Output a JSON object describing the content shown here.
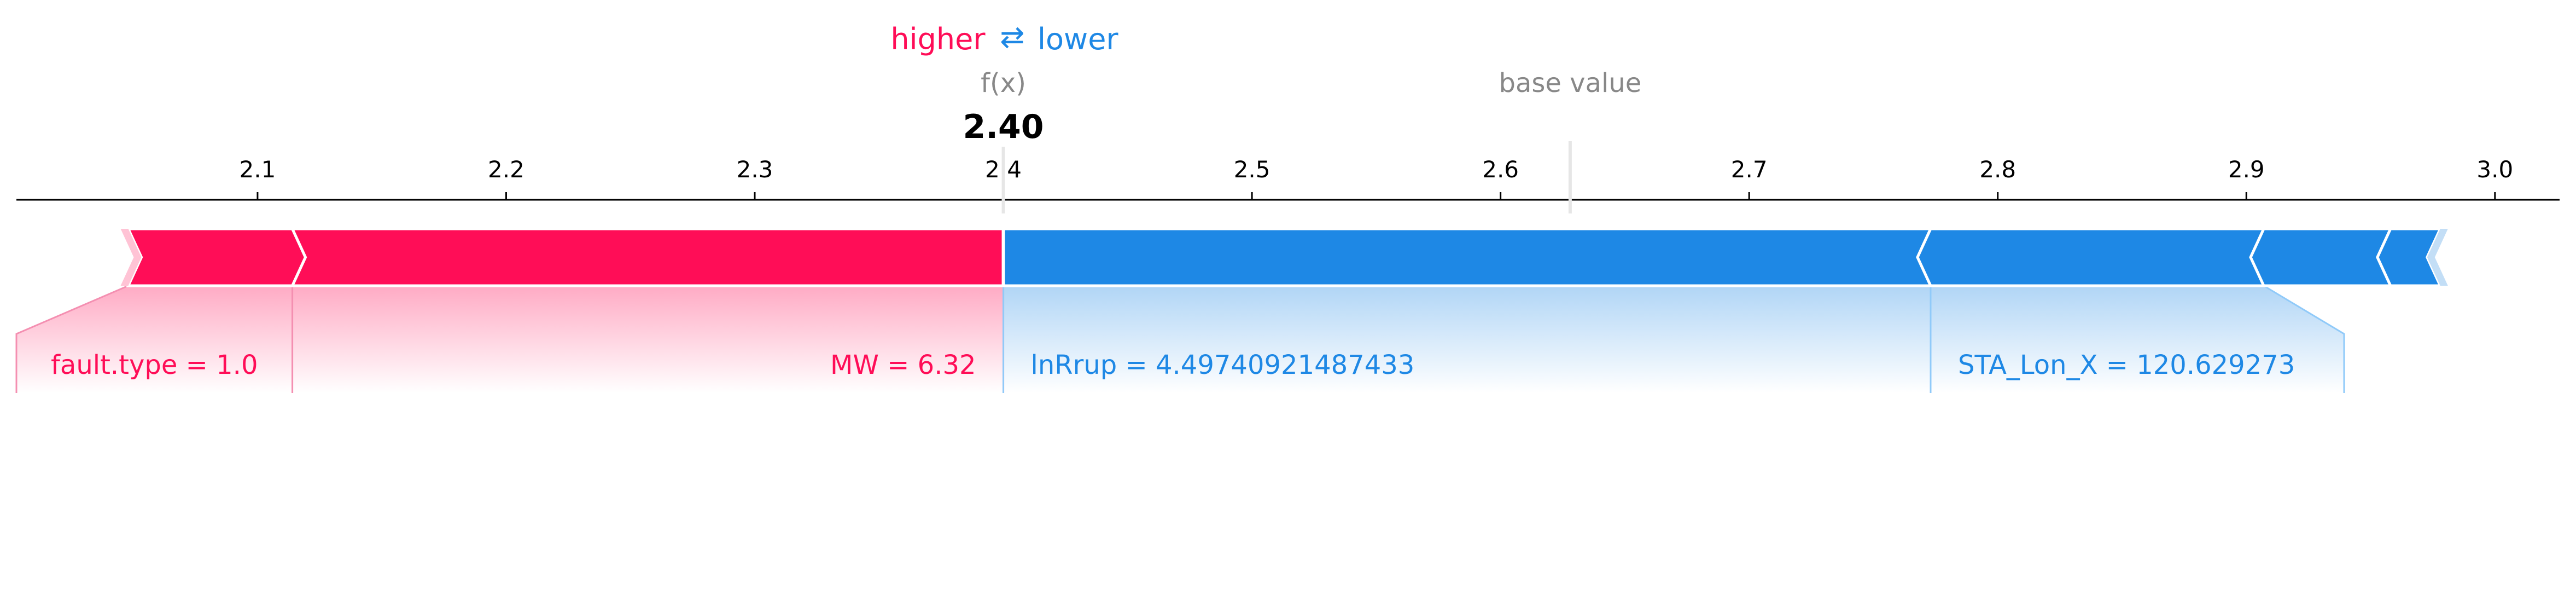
{
  "legend": {
    "higher": "higher",
    "arrows": "⇄",
    "lower": "lower"
  },
  "fx_label": "f(x)",
  "fx_value_label": "2.40",
  "base_value_label": "base value",
  "colors": {
    "positive": "#ff0d57",
    "negative": "#1e88e5",
    "muted": "#888888"
  },
  "chart_data": {
    "type": "force",
    "output_value": 2.4,
    "base_value": 2.628,
    "xlim": [
      2.003,
      3.026
    ],
    "ticks": [
      2.1,
      2.2,
      2.3,
      2.4,
      2.5,
      2.6,
      2.7,
      2.8,
      2.9,
      3.0
    ],
    "tick_labels": [
      "2.1",
      "2.2",
      "2.3",
      "2.4",
      "2.5",
      "2.6",
      "2.7",
      "2.8",
      "2.9",
      "3.0"
    ],
    "positive_features": [
      {
        "label": "fault.type = 1.0",
        "start": 2.048,
        "end": 2.114
      },
      {
        "label": "MW = 6.32",
        "start": 2.114,
        "end": 2.4
      }
    ],
    "negative_features": [
      {
        "label": "lnRrup = 4.49740921487433",
        "start": 2.4,
        "end": 2.773
      },
      {
        "label": "STA_Lon_X = 120.629273",
        "start": 2.773,
        "end": 2.907
      },
      {
        "label": "",
        "start": 2.907,
        "end": 2.958
      },
      {
        "label": "",
        "start": 2.958,
        "end": 2.978
      }
    ]
  }
}
